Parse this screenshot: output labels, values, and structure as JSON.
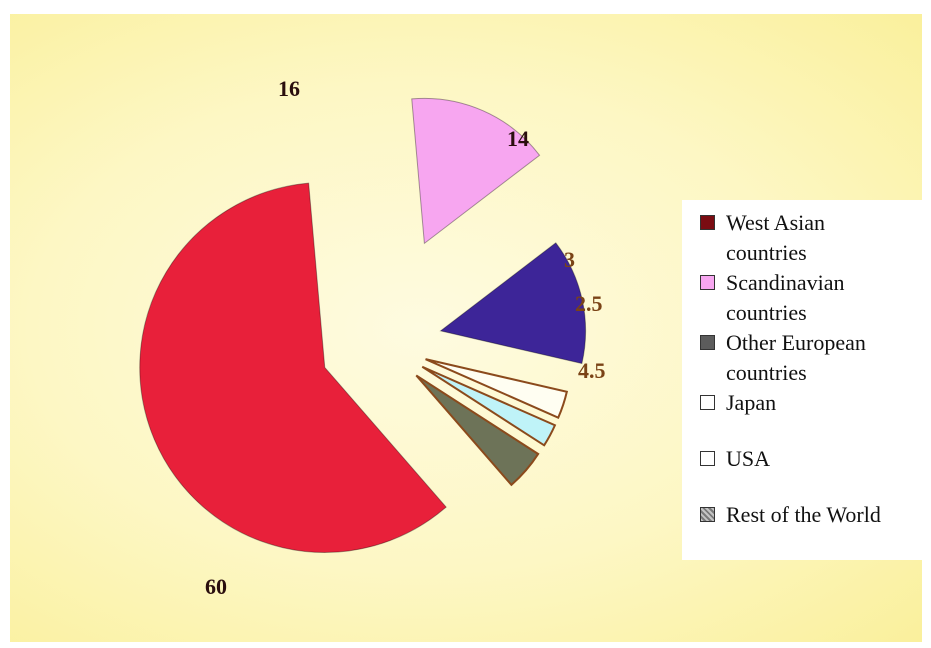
{
  "chart_data": {
    "type": "pie",
    "exploded": true,
    "legend_position": "right",
    "slices": [
      {
        "label": "West Asian countries",
        "value": 60,
        "color": "#e8203a",
        "legend_color": "#7a0c12"
      },
      {
        "label": "Scandinavian countries",
        "value": 16,
        "color": "#f7a6f0",
        "legend_color": "#f7a6f0"
      },
      {
        "label": "Other European countries",
        "value": 14,
        "color": "#3d2598",
        "legend_color": "#5c5c5c"
      },
      {
        "label": "Japan",
        "value": 3,
        "color": "#fffef2",
        "legend_color": "#ffffff"
      },
      {
        "label": "USA",
        "value": 2.5,
        "color": "#bff3f8",
        "legend_color": "#ffffff"
      },
      {
        "label": "Rest of the World",
        "value": 4.5,
        "color": "#6d7358",
        "legend_color": "#7a7a7a"
      }
    ],
    "value_labels": [
      "60",
      "16",
      "14",
      "3",
      "2.5",
      "4.5"
    ]
  },
  "legend": {
    "items": [
      {
        "line1": "West Asian",
        "line2": "countries"
      },
      {
        "line1": "Scandinavian",
        "line2": "countries"
      },
      {
        "line1": "Other European",
        "line2": "countries"
      },
      {
        "line1": "Japan"
      },
      {
        "line1": "USA"
      },
      {
        "line1": "Rest of the World"
      }
    ]
  },
  "colors": {
    "background": "#fdf7c4",
    "slice_outline": "#8b4a1c",
    "label_dark": "#2a0e0e",
    "label_brown": "#7a4316"
  }
}
